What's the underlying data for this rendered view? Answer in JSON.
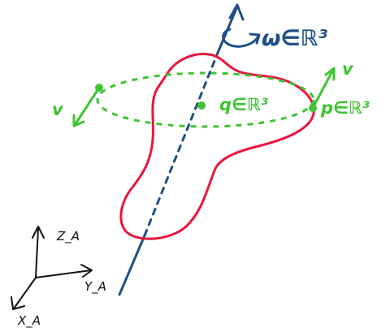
{
  "labels": {
    "omega": "ω∈ℝ³",
    "q": "q∈ℝ³",
    "p": "p∈ℝ³",
    "v_right": "v",
    "v_left": "v",
    "z_axis": "Z_A",
    "y_axis": "Y_A",
    "x_axis": "X_A"
  },
  "colors": {
    "axis_of_rotation": "#1f4f86",
    "body_outline": "#e8163a",
    "motion": "#3ec431",
    "frame": "#111111"
  }
}
